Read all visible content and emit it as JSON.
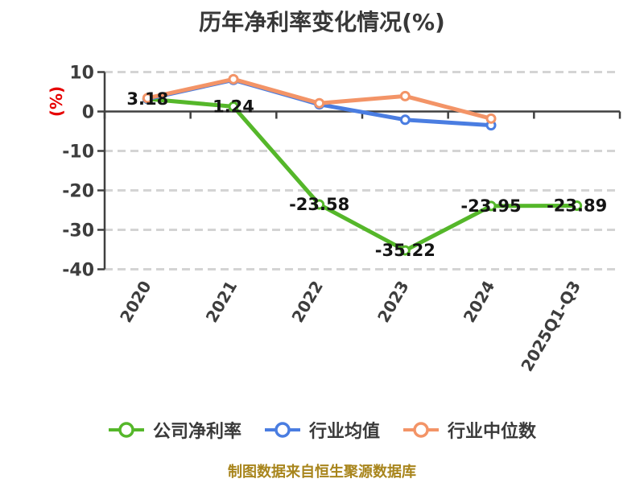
{
  "page": {
    "caption": "制图数据来自恒生聚源数据库"
  },
  "colors": {
    "company_green": "#55b72a",
    "industry_avg_blue": "#4a7de1",
    "industry_median_orange": "#f39467",
    "axis": "#404040",
    "grid": "#d4d4d4",
    "tick_text": "#3d3d3d",
    "data_label_text": "#141414",
    "ylabel_red": "#e60000",
    "caption_gold": "#a8851c",
    "marker_fill": "#ffffff",
    "background": "#ffffff"
  },
  "chart_data": {
    "type": "line",
    "title": "历年净利率变化情况(%)",
    "ylabel": "(%)",
    "xlabel": "",
    "categories": [
      "2020",
      "2021",
      "2022",
      "2023",
      "2024",
      "2025Q1-Q3"
    ],
    "series": [
      {
        "name": "公司净利率",
        "color": "#55b72a",
        "values": [
          3.18,
          1.24,
          -23.58,
          -35.22,
          -23.95,
          -23.89
        ],
        "data_labels": true
      },
      {
        "name": "行业均值",
        "color": "#4a7de1",
        "values": [
          3.2,
          8.0,
          1.8,
          -2.1,
          -3.5
        ],
        "data_labels": false
      },
      {
        "name": "行业中位数",
        "color": "#f39467",
        "values": [
          3.4,
          8.2,
          2.1,
          3.9,
          -1.8
        ],
        "data_labels": false
      }
    ],
    "ylim": [
      -40,
      10
    ],
    "yticks": [
      10,
      0,
      -10,
      -20,
      -30,
      -40
    ],
    "grid": "horizontal-dashed",
    "legend_position": "bottom",
    "x_label_rotation_deg": -60
  },
  "legend": {
    "items": [
      {
        "label": "公司净利率",
        "color": "#55b72a"
      },
      {
        "label": "行业均值",
        "color": "#4a7de1"
      },
      {
        "label": "行业中位数",
        "color": "#f39467"
      }
    ]
  }
}
